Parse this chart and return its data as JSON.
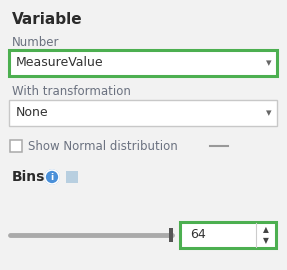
{
  "bg_color": "#f2f2f2",
  "title": "Variable",
  "number_label": "Number",
  "dropdown1_text": "MeasureValue",
  "dropdown1_border": "#4caf50",
  "dropdown2_label": "With transformation",
  "dropdown2_text": "None",
  "dropdown2_border": "#c8c8c8",
  "checkbox_label": "Show Normal distribution",
  "checkbox_color": "#ffffff",
  "checkbox_border": "#aaaaaa",
  "dash_color": "#999999",
  "bins_label": "Bins",
  "bins_icon_color": "#4a90d9",
  "bins_square_color": "#b8cfe0",
  "slider_track_color": "#aaaaaa",
  "slider_thumb_color": "#555555",
  "spinbox_value": "64",
  "spinbox_border": "#4caf50",
  "title_fontsize": 11,
  "label_fontsize": 8.5,
  "dropdown_fontsize": 9,
  "bins_label_fontsize": 10,
  "arrow_color": "#666666"
}
